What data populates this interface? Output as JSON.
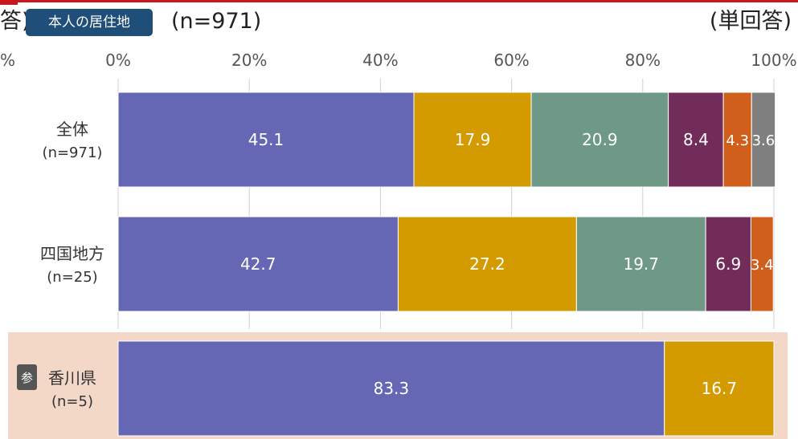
{
  "header": {
    "cut_text": "答)",
    "tag_label": "本人の居住地",
    "sample": "(n=971)",
    "answer_type": "(単回答)"
  },
  "chart_data": {
    "type": "bar",
    "orientation": "horizontal-stacked-100",
    "xlim": [
      0,
      100
    ],
    "ticks": [
      "0%",
      "20%",
      "40%",
      "60%",
      "80%",
      "100%"
    ],
    "left_cut_tick": "%",
    "categories": [
      {
        "name": "全体",
        "n": "(n=971)",
        "highlight": false
      },
      {
        "name": "四国地方",
        "n": "(n=25)",
        "highlight": false
      },
      {
        "name": "香川県",
        "n": "(n=5)",
        "highlight": true,
        "badge": "参"
      }
    ],
    "series": [
      {
        "color": "#6567b4",
        "values": [
          45.1,
          42.7,
          83.3
        ]
      },
      {
        "color": "#d39b00",
        "values": [
          17.9,
          27.2,
          16.7
        ]
      },
      {
        "color": "#6e9986",
        "values": [
          20.9,
          19.7,
          0
        ]
      },
      {
        "color": "#722c59",
        "values": [
          8.4,
          6.9,
          0
        ]
      },
      {
        "color": "#cf5f1a",
        "values": [
          4.3,
          3.4,
          0
        ]
      },
      {
        "color": "#7f7f7f",
        "values": [
          3.6,
          0,
          0
        ]
      }
    ],
    "data_labels": [
      [
        "45.1",
        "17.9",
        "20.9",
        "8.4",
        "4.3",
        "3.6"
      ],
      [
        "42.7",
        "27.2",
        "19.7",
        "6.9",
        "3.4",
        ""
      ],
      [
        "83.3",
        "16.7",
        "",
        "",
        "",
        ""
      ]
    ],
    "highlight_color": "#f3d8c8",
    "grid": true
  }
}
